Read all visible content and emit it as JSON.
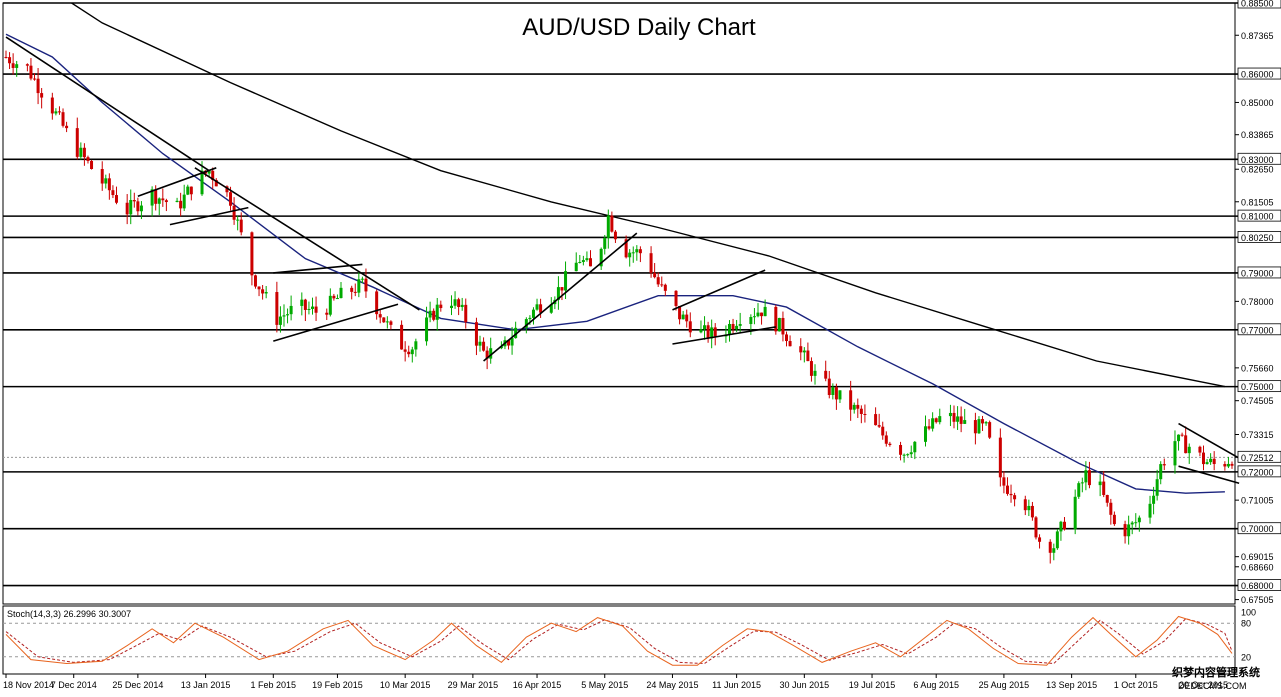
{
  "chart_data": {
    "type": "candlestick",
    "title": "AUD/USD Daily Chart",
    "y_axis_side": "right",
    "ylim": [
      0.6735,
      0.885
    ],
    "price_ticks": [
      "0.88500",
      "0.87365",
      "0.86000",
      "0.85000",
      "0.83865",
      "0.83000",
      "0.82650",
      "0.81505",
      "0.81000",
      "0.80250",
      "0.79000",
      "0.78000",
      "0.77000",
      "0.75660",
      "0.75000",
      "0.74505",
      "0.73315",
      "0.72512",
      "0.72000",
      "0.71005",
      "0.70000",
      "0.69015",
      "0.68660",
      "0.68000",
      "0.67505"
    ],
    "horizontal_levels": [
      0.885,
      0.86,
      0.83,
      0.81,
      0.8025,
      0.79,
      0.77,
      0.75,
      0.72,
      0.7,
      0.68
    ],
    "last_price": 0.72512,
    "x_start": "2014-11-18",
    "x_end": "2015-10-28",
    "x_labels": [
      {
        "date": "2014-11-18",
        "label": "18 Nov 2014"
      },
      {
        "date": "2014-12-07",
        "label": "7 Dec 2014"
      },
      {
        "date": "2014-12-25",
        "label": "25 Dec 2014"
      },
      {
        "date": "2015-01-13",
        "label": "13 Jan 2015"
      },
      {
        "date": "2015-02-01",
        "label": "1 Feb 2015"
      },
      {
        "date": "2015-02-19",
        "label": "19 Feb 2015"
      },
      {
        "date": "2015-03-10",
        "label": "10 Mar 2015"
      },
      {
        "date": "2015-03-29",
        "label": "29 Mar 2015"
      },
      {
        "date": "2015-04-16",
        "label": "16 Apr 2015"
      },
      {
        "date": "2015-05-05",
        "label": "5 May 2015"
      },
      {
        "date": "2015-05-24",
        "label": "24 May 2015"
      },
      {
        "date": "2015-06-11",
        "label": "11 Jun 2015"
      },
      {
        "date": "2015-06-30",
        "label": "30 Jun 2015"
      },
      {
        "date": "2015-07-19",
        "label": "19 Jul 2015"
      },
      {
        "date": "2015-08-06",
        "label": "6 Aug 2015"
      },
      {
        "date": "2015-08-25",
        "label": "25 Aug 2015"
      },
      {
        "date": "2015-09-13",
        "label": "13 Sep 2015"
      },
      {
        "date": "2015-10-01",
        "label": "1 Oct 2015"
      },
      {
        "date": "2015-10-20",
        "label": "20 Oct 2015"
      }
    ],
    "price_path": [
      [
        "2014-11-18",
        0.866
      ],
      [
        "2014-11-24",
        0.862
      ],
      [
        "2014-12-01",
        0.848
      ],
      [
        "2014-12-07",
        0.835
      ],
      [
        "2014-12-15",
        0.822
      ],
      [
        "2014-12-22",
        0.812
      ],
      [
        "2014-12-29",
        0.818
      ],
      [
        "2015-01-05",
        0.813
      ],
      [
        "2015-01-10",
        0.822
      ],
      [
        "2015-01-14",
        0.826
      ],
      [
        "2015-01-20",
        0.816
      ],
      [
        "2015-01-26",
        0.79
      ],
      [
        "2015-02-02",
        0.774
      ],
      [
        "2015-02-08",
        0.778
      ],
      [
        "2015-02-14",
        0.776
      ],
      [
        "2015-02-20",
        0.782
      ],
      [
        "2015-02-26",
        0.786
      ],
      [
        "2015-03-02",
        0.778
      ],
      [
        "2015-03-08",
        0.765
      ],
      [
        "2015-03-12",
        0.764
      ],
      [
        "2015-03-18",
        0.776
      ],
      [
        "2015-03-22",
        0.782
      ],
      [
        "2015-03-26",
        0.776
      ],
      [
        "2015-04-01",
        0.762
      ],
      [
        "2015-04-06",
        0.762
      ],
      [
        "2015-04-10",
        0.77
      ],
      [
        "2015-04-16",
        0.778
      ],
      [
        "2015-04-22",
        0.784
      ],
      [
        "2015-04-28",
        0.795
      ],
      [
        "2015-05-02",
        0.79
      ],
      [
        "2015-05-06",
        0.81
      ],
      [
        "2015-05-10",
        0.798
      ],
      [
        "2015-05-16",
        0.797
      ],
      [
        "2015-05-20",
        0.786
      ],
      [
        "2015-05-26",
        0.775
      ],
      [
        "2015-06-01",
        0.769
      ],
      [
        "2015-06-06",
        0.768
      ],
      [
        "2015-06-12",
        0.775
      ],
      [
        "2015-06-18",
        0.777
      ],
      [
        "2015-06-24",
        0.77
      ],
      [
        "2015-06-30",
        0.76
      ],
      [
        "2015-07-04",
        0.752
      ],
      [
        "2015-07-10",
        0.746
      ],
      [
        "2015-07-16",
        0.74
      ],
      [
        "2015-07-22",
        0.733
      ],
      [
        "2015-07-28",
        0.727
      ],
      [
        "2015-08-03",
        0.734
      ],
      [
        "2015-08-08",
        0.74
      ],
      [
        "2015-08-14",
        0.737
      ],
      [
        "2015-08-20",
        0.735
      ],
      [
        "2015-08-24",
        0.716
      ],
      [
        "2015-08-30",
        0.712
      ],
      [
        "2015-09-04",
        0.696
      ],
      [
        "2015-09-08",
        0.694
      ],
      [
        "2015-09-13",
        0.708
      ],
      [
        "2015-09-17",
        0.719
      ],
      [
        "2015-09-21",
        0.714
      ],
      [
        "2015-09-26",
        0.698
      ],
      [
        "2015-09-30",
        0.701
      ],
      [
        "2015-10-04",
        0.706
      ],
      [
        "2015-10-08",
        0.722
      ],
      [
        "2015-10-12",
        0.731
      ],
      [
        "2015-10-16",
        0.729
      ],
      [
        "2015-10-20",
        0.724
      ],
      [
        "2015-10-24",
        0.722
      ],
      [
        "2015-10-28",
        0.725
      ]
    ],
    "ma_50": [
      [
        "2014-11-18",
        0.874
      ],
      [
        "2014-12-01",
        0.866
      ],
      [
        "2014-12-15",
        0.85
      ],
      [
        "2015-01-01",
        0.832
      ],
      [
        "2015-01-20",
        0.815
      ],
      [
        "2015-02-10",
        0.795
      ],
      [
        "2015-03-01",
        0.785
      ],
      [
        "2015-03-20",
        0.774
      ],
      [
        "2015-04-10",
        0.77
      ],
      [
        "2015-04-30",
        0.773
      ],
      [
        "2015-05-20",
        0.782
      ],
      [
        "2015-06-10",
        0.782
      ],
      [
        "2015-06-25",
        0.778
      ],
      [
        "2015-07-15",
        0.764
      ],
      [
        "2015-08-05",
        0.751
      ],
      [
        "2015-08-25",
        0.737
      ],
      [
        "2015-09-15",
        0.723
      ],
      [
        "2015-10-01",
        0.714
      ],
      [
        "2015-10-15",
        0.7125
      ],
      [
        "2015-10-26",
        0.713
      ]
    ],
    "ma_200": [
      [
        "2014-11-18",
        0.9
      ],
      [
        "2014-12-15",
        0.878
      ],
      [
        "2015-01-20",
        0.857
      ],
      [
        "2015-02-20",
        0.84
      ],
      [
        "2015-03-20",
        0.826
      ],
      [
        "2015-04-20",
        0.815
      ],
      [
        "2015-05-20",
        0.806
      ],
      [
        "2015-06-20",
        0.796
      ],
      [
        "2015-07-20",
        0.783
      ],
      [
        "2015-08-20",
        0.771
      ],
      [
        "2015-09-20",
        0.759
      ],
      [
        "2015-10-26",
        0.75
      ]
    ],
    "trendlines": [
      [
        [
          "2014-11-18",
          0.873
        ],
        [
          "2015-01-14",
          0.826
        ]
      ],
      [
        [
          "2015-01-10",
          0.827
        ],
        [
          "2015-03-14",
          0.777
        ]
      ],
      [
        [
          "2014-12-25",
          0.817
        ],
        [
          "2015-01-16",
          0.827
        ]
      ],
      [
        [
          "2015-01-03",
          0.807
        ],
        [
          "2015-01-25",
          0.813
        ]
      ],
      [
        [
          "2015-02-01",
          0.79
        ],
        [
          "2015-02-26",
          0.793
        ]
      ],
      [
        [
          "2015-02-01",
          0.766
        ],
        [
          "2015-03-08",
          0.779
        ]
      ],
      [
        [
          "2015-04-01",
          0.759
        ],
        [
          "2015-05-14",
          0.804
        ]
      ],
      [
        [
          "2015-05-24",
          0.777
        ],
        [
          "2015-06-19",
          0.791
        ]
      ],
      [
        [
          "2015-05-24",
          0.765
        ],
        [
          "2015-06-22",
          0.771
        ]
      ],
      [
        [
          "2015-10-13",
          0.737
        ],
        [
          "2015-10-30",
          0.7248
        ]
      ],
      [
        [
          "2015-10-13",
          0.722
        ],
        [
          "2015-10-30",
          0.716
        ]
      ]
    ],
    "colors": {
      "bull": "#00aa00",
      "bear": "#cc0000",
      "ma50": "#1a237e",
      "ma200": "#000000",
      "levels": "#000000",
      "stoch_k": "#e8641e",
      "stoch_d": "#b22222"
    },
    "stochastic": {
      "label": "Stoch(14,3,3) 26.2996 30.3007",
      "ticks": [
        "100",
        "80",
        "20"
      ],
      "levels": [
        80,
        20
      ],
      "k": [
        [
          "2014-11-18",
          60
        ],
        [
          "2014-11-25",
          15
        ],
        [
          "2014-12-05",
          8
        ],
        [
          "2014-12-15",
          12
        ],
        [
          "2014-12-22",
          40
        ],
        [
          "2014-12-29",
          70
        ],
        [
          "2015-01-04",
          45
        ],
        [
          "2015-01-10",
          80
        ],
        [
          "2015-01-18",
          55
        ],
        [
          "2015-01-28",
          15
        ],
        [
          "2015-02-05",
          30
        ],
        [
          "2015-02-15",
          70
        ],
        [
          "2015-02-22",
          85
        ],
        [
          "2015-03-01",
          40
        ],
        [
          "2015-03-10",
          15
        ],
        [
          "2015-03-18",
          50
        ],
        [
          "2015-03-23",
          80
        ],
        [
          "2015-03-30",
          40
        ],
        [
          "2015-04-06",
          10
        ],
        [
          "2015-04-13",
          55
        ],
        [
          "2015-04-20",
          80
        ],
        [
          "2015-04-27",
          65
        ],
        [
          "2015-05-03",
          90
        ],
        [
          "2015-05-10",
          75
        ],
        [
          "2015-05-17",
          30
        ],
        [
          "2015-05-24",
          5
        ],
        [
          "2015-05-31",
          5
        ],
        [
          "2015-06-07",
          40
        ],
        [
          "2015-06-14",
          70
        ],
        [
          "2015-06-20",
          65
        ],
        [
          "2015-06-27",
          40
        ],
        [
          "2015-07-05",
          10
        ],
        [
          "2015-07-13",
          30
        ],
        [
          "2015-07-20",
          45
        ],
        [
          "2015-07-27",
          20
        ],
        [
          "2015-08-04",
          60
        ],
        [
          "2015-08-09",
          85
        ],
        [
          "2015-08-15",
          70
        ],
        [
          "2015-08-22",
          35
        ],
        [
          "2015-08-29",
          8
        ],
        [
          "2015-09-06",
          5
        ],
        [
          "2015-09-13",
          55
        ],
        [
          "2015-09-19",
          90
        ],
        [
          "2015-09-24",
          60
        ],
        [
          "2015-10-01",
          20
        ],
        [
          "2015-10-07",
          50
        ],
        [
          "2015-10-13",
          92
        ],
        [
          "2015-10-19",
          80
        ],
        [
          "2015-10-24",
          60
        ],
        [
          "2015-10-28",
          26
        ]
      ],
      "d": [
        [
          "2014-11-18",
          65
        ],
        [
          "2014-11-27",
          20
        ],
        [
          "2014-12-07",
          10
        ],
        [
          "2014-12-17",
          15
        ],
        [
          "2014-12-24",
          38
        ],
        [
          "2014-12-31",
          62
        ],
        [
          "2015-01-06",
          50
        ],
        [
          "2015-01-12",
          75
        ],
        [
          "2015-01-20",
          55
        ],
        [
          "2015-01-30",
          20
        ],
        [
          "2015-02-07",
          30
        ],
        [
          "2015-02-17",
          65
        ],
        [
          "2015-02-24",
          80
        ],
        [
          "2015-03-03",
          45
        ],
        [
          "2015-03-12",
          20
        ],
        [
          "2015-03-20",
          48
        ],
        [
          "2015-03-25",
          75
        ],
        [
          "2015-04-01",
          42
        ],
        [
          "2015-04-08",
          15
        ],
        [
          "2015-04-15",
          52
        ],
        [
          "2015-04-22",
          78
        ],
        [
          "2015-04-29",
          68
        ],
        [
          "2015-05-05",
          86
        ],
        [
          "2015-05-12",
          72
        ],
        [
          "2015-05-19",
          35
        ],
        [
          "2015-05-26",
          10
        ],
        [
          "2015-06-02",
          8
        ],
        [
          "2015-06-09",
          38
        ],
        [
          "2015-06-16",
          66
        ],
        [
          "2015-06-22",
          64
        ],
        [
          "2015-06-29",
          42
        ],
        [
          "2015-07-07",
          14
        ],
        [
          "2015-07-15",
          28
        ],
        [
          "2015-07-22",
          42
        ],
        [
          "2015-07-29",
          25
        ],
        [
          "2015-08-06",
          55
        ],
        [
          "2015-08-11",
          80
        ],
        [
          "2015-08-17",
          70
        ],
        [
          "2015-08-24",
          38
        ],
        [
          "2015-08-31",
          12
        ],
        [
          "2015-09-08",
          8
        ],
        [
          "2015-09-15",
          50
        ],
        [
          "2015-09-21",
          85
        ],
        [
          "2015-09-26",
          62
        ],
        [
          "2015-10-03",
          25
        ],
        [
          "2015-10-09",
          48
        ],
        [
          "2015-10-15",
          88
        ],
        [
          "2015-10-21",
          78
        ],
        [
          "2015-10-26",
          62
        ],
        [
          "2015-10-28",
          30
        ]
      ]
    }
  },
  "watermark": "织梦内容管理系统",
  "watermark2": "DEDECMS.COM"
}
